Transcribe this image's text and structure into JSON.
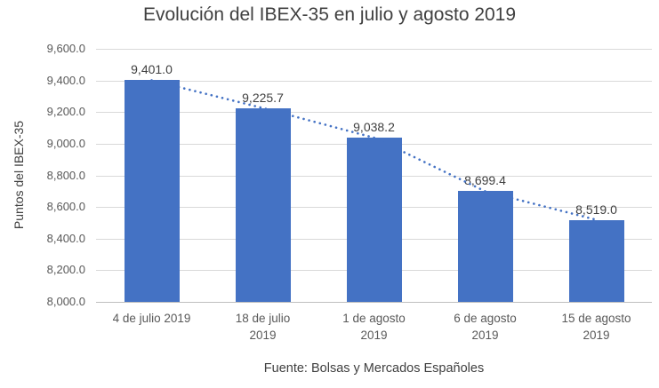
{
  "chart_data": {
    "type": "bar",
    "title": "Evolución del IBEX-35 en julio y agosto 2019",
    "ylabel": "Puntos del IBEX-35",
    "xlabel": "",
    "source": "Fuente: Bolsas y Mercados Españoles",
    "categories": [
      "4 de julio 2019",
      "18 de julio\n2019",
      "1 de agosto\n2019",
      "6 de agosto\n2019",
      "15 de agosto\n2019"
    ],
    "values": [
      9401.0,
      9225.7,
      9038.2,
      8699.4,
      8519.0
    ],
    "value_labels": [
      "9,401.0",
      "9,225.7",
      "9,038.2",
      "8,699.4",
      "8,519.0"
    ],
    "ylim": [
      8000,
      9600
    ],
    "ytick_step": 200,
    "ytick_labels": [
      "8,000.0",
      "8,200.0",
      "8,400.0",
      "8,600.0",
      "8,800.0",
      "9,000.0",
      "9,200.0",
      "9,400.0",
      "9,600.0"
    ],
    "grid": true,
    "legend": "none",
    "trendline": "dotted",
    "bar_color": "#4472c4",
    "trendline_color": "#4472c4",
    "grid_color": "#d9d9d9",
    "axis_color": "#bfbfbf"
  }
}
